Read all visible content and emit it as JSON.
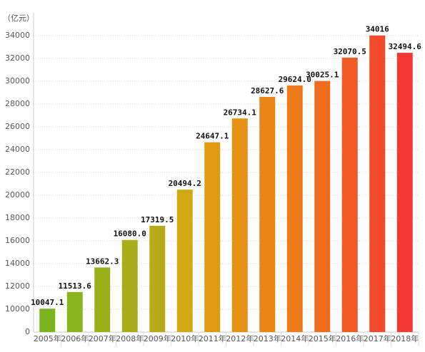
{
  "chart_data": {
    "type": "bar",
    "unit_label": "（亿元）",
    "categories": [
      "2005年",
      "2006年",
      "2007年",
      "2008年",
      "2009年",
      "2010年",
      "2011年",
      "2012年",
      "2013年",
      "2014年",
      "2015年",
      "2016年",
      "2017年",
      "2018年"
    ],
    "values": [
      10047.1,
      11513.6,
      13662.3,
      16080.0,
      17319.5,
      20494.2,
      24647.1,
      26734.1,
      28627.6,
      29624.0,
      30025.1,
      32070.5,
      34016,
      32494.6
    ],
    "value_labels": [
      "10047.1",
      "11513.6",
      "13662.3",
      "16080.0",
      "17319.5",
      "20494.2",
      "24647.1",
      "26734.1",
      "28627.6",
      "29624.0",
      "30025.1",
      "32070.5",
      "34016",
      "32494.6"
    ],
    "colors": [
      "#7ab51d",
      "#8ab41c",
      "#9aaf1a",
      "#a9ad18",
      "#b9aa15",
      "#d4a714",
      "#e09a12",
      "#e69114",
      "#eb8516",
      "#ee7a1a",
      "#ef6c1e",
      "#f05a24",
      "#f24a2b",
      "#f23a33"
    ],
    "ylim": [
      0,
      36000
    ],
    "yticks": [
      0,
      10000,
      12000,
      14000,
      16000,
      18000,
      20000,
      22000,
      24000,
      26000,
      28000,
      30000,
      32000,
      34000
    ],
    "grid": true
  }
}
